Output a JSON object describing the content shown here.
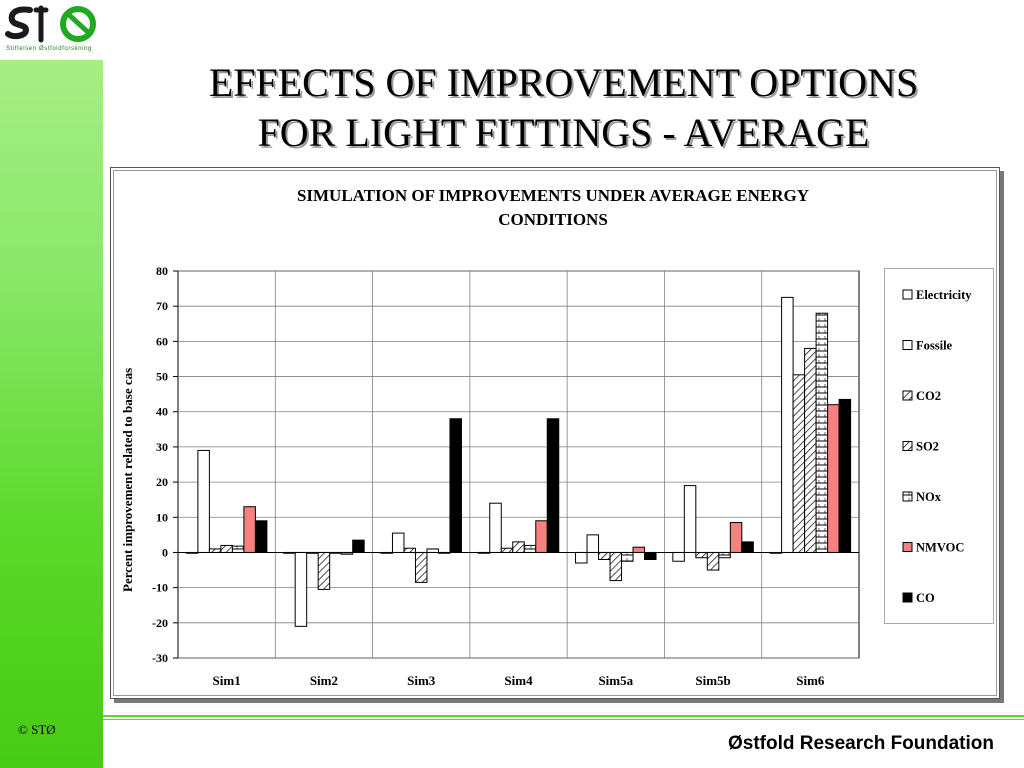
{
  "branding": {
    "logo_text": "STØ",
    "logo_subtitle": "Stiftelsen Østfoldforskning",
    "copyright": "© STØ",
    "footer": "Østfold Research Foundation"
  },
  "slide": {
    "title_line1": "EFFECTS OF IMPROVEMENT OPTIONS",
    "title_line2": "FOR LIGHT FITTINGS - AVERAGE"
  },
  "colors": {
    "sidebar": "#6fe04a",
    "nmvoc": "#f78080",
    "co": "#000000",
    "grid": "#808080"
  },
  "chart_data": {
    "type": "bar",
    "title_line1": "SIMULATION OF IMPROVEMENTS UNDER AVERAGE ENERGY",
    "title_line2": "CONDITIONS",
    "xlabel": "",
    "ylabel": "Percent improvement related to base cas",
    "ylim": [
      -30,
      80
    ],
    "yticks": [
      -30,
      -20,
      -10,
      0,
      10,
      20,
      30,
      40,
      50,
      60,
      70,
      80
    ],
    "grid": true,
    "legend_position": "right",
    "categories": [
      "Sim1",
      "Sim2",
      "Sim3",
      "Sim4",
      "Sim5a",
      "Sim5b",
      "Sim6"
    ],
    "series": [
      {
        "name": "Electricity",
        "pattern": "white",
        "values": [
          0,
          0,
          0,
          0,
          -3,
          -2.5,
          0
        ]
      },
      {
        "name": "Fossile",
        "pattern": "white",
        "values": [
          29,
          -21,
          5.5,
          14,
          5,
          19,
          72.5
        ]
      },
      {
        "name": "CO2",
        "pattern": "hatch",
        "values": [
          1,
          0,
          1.2,
          1.2,
          -2,
          -1.5,
          50.5
        ]
      },
      {
        "name": "SO2",
        "pattern": "hatch",
        "values": [
          2,
          -10.5,
          -8.5,
          3,
          -8,
          -5,
          58
        ]
      },
      {
        "name": "NOx",
        "pattern": "hbars",
        "values": [
          1.8,
          0,
          1,
          2,
          -2.5,
          -1.5,
          68
        ]
      },
      {
        "name": "NMVOC",
        "pattern": "solid-pink",
        "values": [
          13,
          -0.5,
          0,
          9,
          1.5,
          8.5,
          42
        ]
      },
      {
        "name": "CO",
        "pattern": "solid-black",
        "values": [
          9,
          3.5,
          38,
          38,
          -2,
          3,
          43.5
        ]
      }
    ]
  }
}
